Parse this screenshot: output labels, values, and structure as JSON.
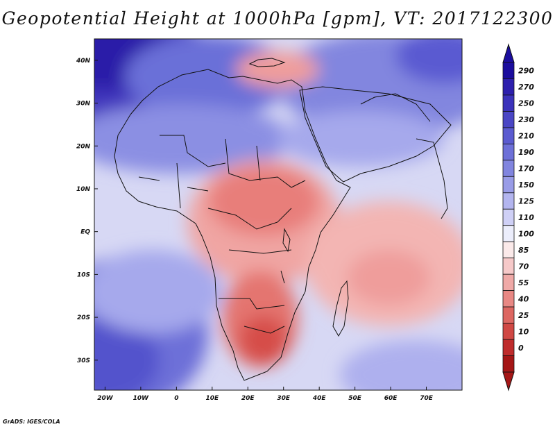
{
  "title": "Geopotential Height at 1000hPa [gpm], VT: 2017122300",
  "credit": "GrADS: IGES/COLA",
  "map": {
    "variable": "Geopotential Height at 1000hPa",
    "units": "gpm",
    "valid_time": "2017122300",
    "region": "Africa",
    "lon_range": [
      -23,
      80
    ],
    "lat_range": [
      -37,
      45
    ],
    "lon_ticks": [
      "20W",
      "10W",
      "0",
      "10E",
      "20E",
      "30E",
      "40E",
      "50E",
      "60E",
      "70E"
    ],
    "lat_ticks": [
      "40N",
      "30N",
      "20N",
      "10N",
      "EQ",
      "10S",
      "20S",
      "30S"
    ]
  },
  "colorbar": {
    "labels": [
      "290",
      "270",
      "250",
      "230",
      "210",
      "190",
      "170",
      "150",
      "125",
      "110",
      "100",
      "85",
      "70",
      "55",
      "40",
      "25",
      "10",
      "0"
    ],
    "colors": [
      "#1b0d9e",
      "#2d1fad",
      "#3b32bb",
      "#4a46c5",
      "#5b5bd0",
      "#6d70d8",
      "#8185df",
      "#999ce7",
      "#b3b5ef",
      "#cfd0f6",
      "#eceefc",
      "#fbeaea",
      "#f6c9c9",
      "#efa9a7",
      "#e88884",
      "#dd6762",
      "#d04844",
      "#bf2c2c",
      "#a51616"
    ],
    "top_color": "#1b0d9e",
    "bottom_color": "#a51616"
  },
  "legend_colors": {
    "high": "#2a1aa8",
    "mid": "#f3f3fb",
    "low": "#d9534f",
    "coast": "#111111"
  }
}
